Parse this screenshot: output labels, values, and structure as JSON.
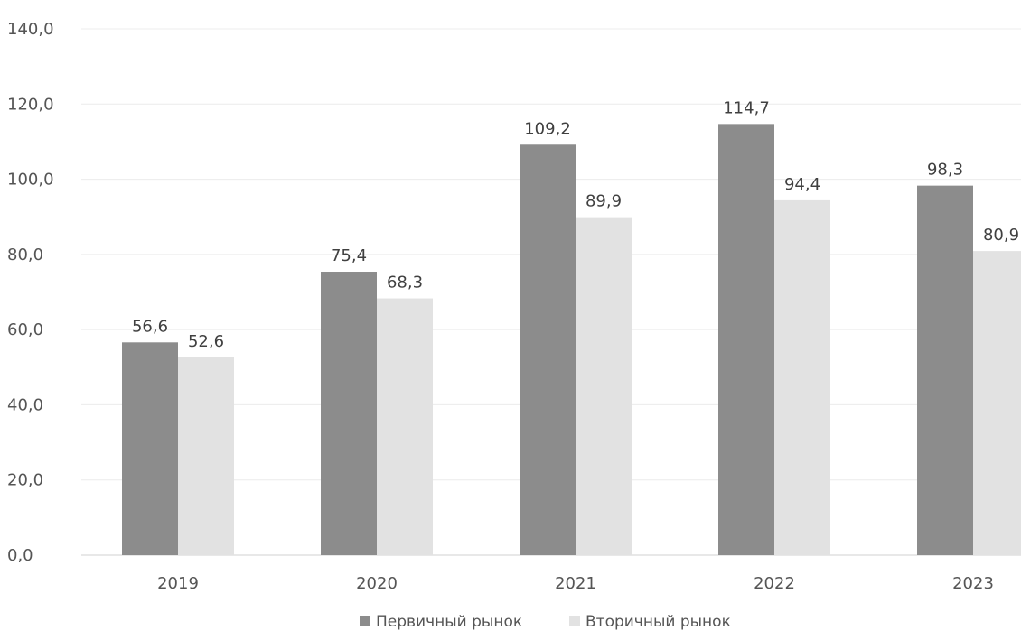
{
  "chart_data": {
    "type": "bar",
    "categories": [
      "2019",
      "2020",
      "2021",
      "2022",
      "2023"
    ],
    "series": [
      {
        "name": "Первичный рынок",
        "values": [
          56.6,
          75.4,
          109.2,
          114.7,
          98.3
        ],
        "labels": [
          "56,6",
          "75,4",
          "109,2",
          "114,7",
          "98,3"
        ],
        "color": "#8c8c8c"
      },
      {
        "name": "Вторичный рынок",
        "values": [
          52.6,
          68.3,
          89.9,
          94.4,
          80.9
        ],
        "labels": [
          "52,6",
          "68,3",
          "89,9",
          "94,4",
          "80,9"
        ],
        "color": "#e2e2e2"
      }
    ],
    "yticks": [
      "0,0",
      "20,0",
      "40,0",
      "60,0",
      "80,0",
      "100,0",
      "120,0",
      "140,0"
    ],
    "ylim": [
      0,
      140
    ],
    "grid": true,
    "legend_position": "bottom-center",
    "title": "",
    "xlabel": "",
    "ylabel": ""
  }
}
